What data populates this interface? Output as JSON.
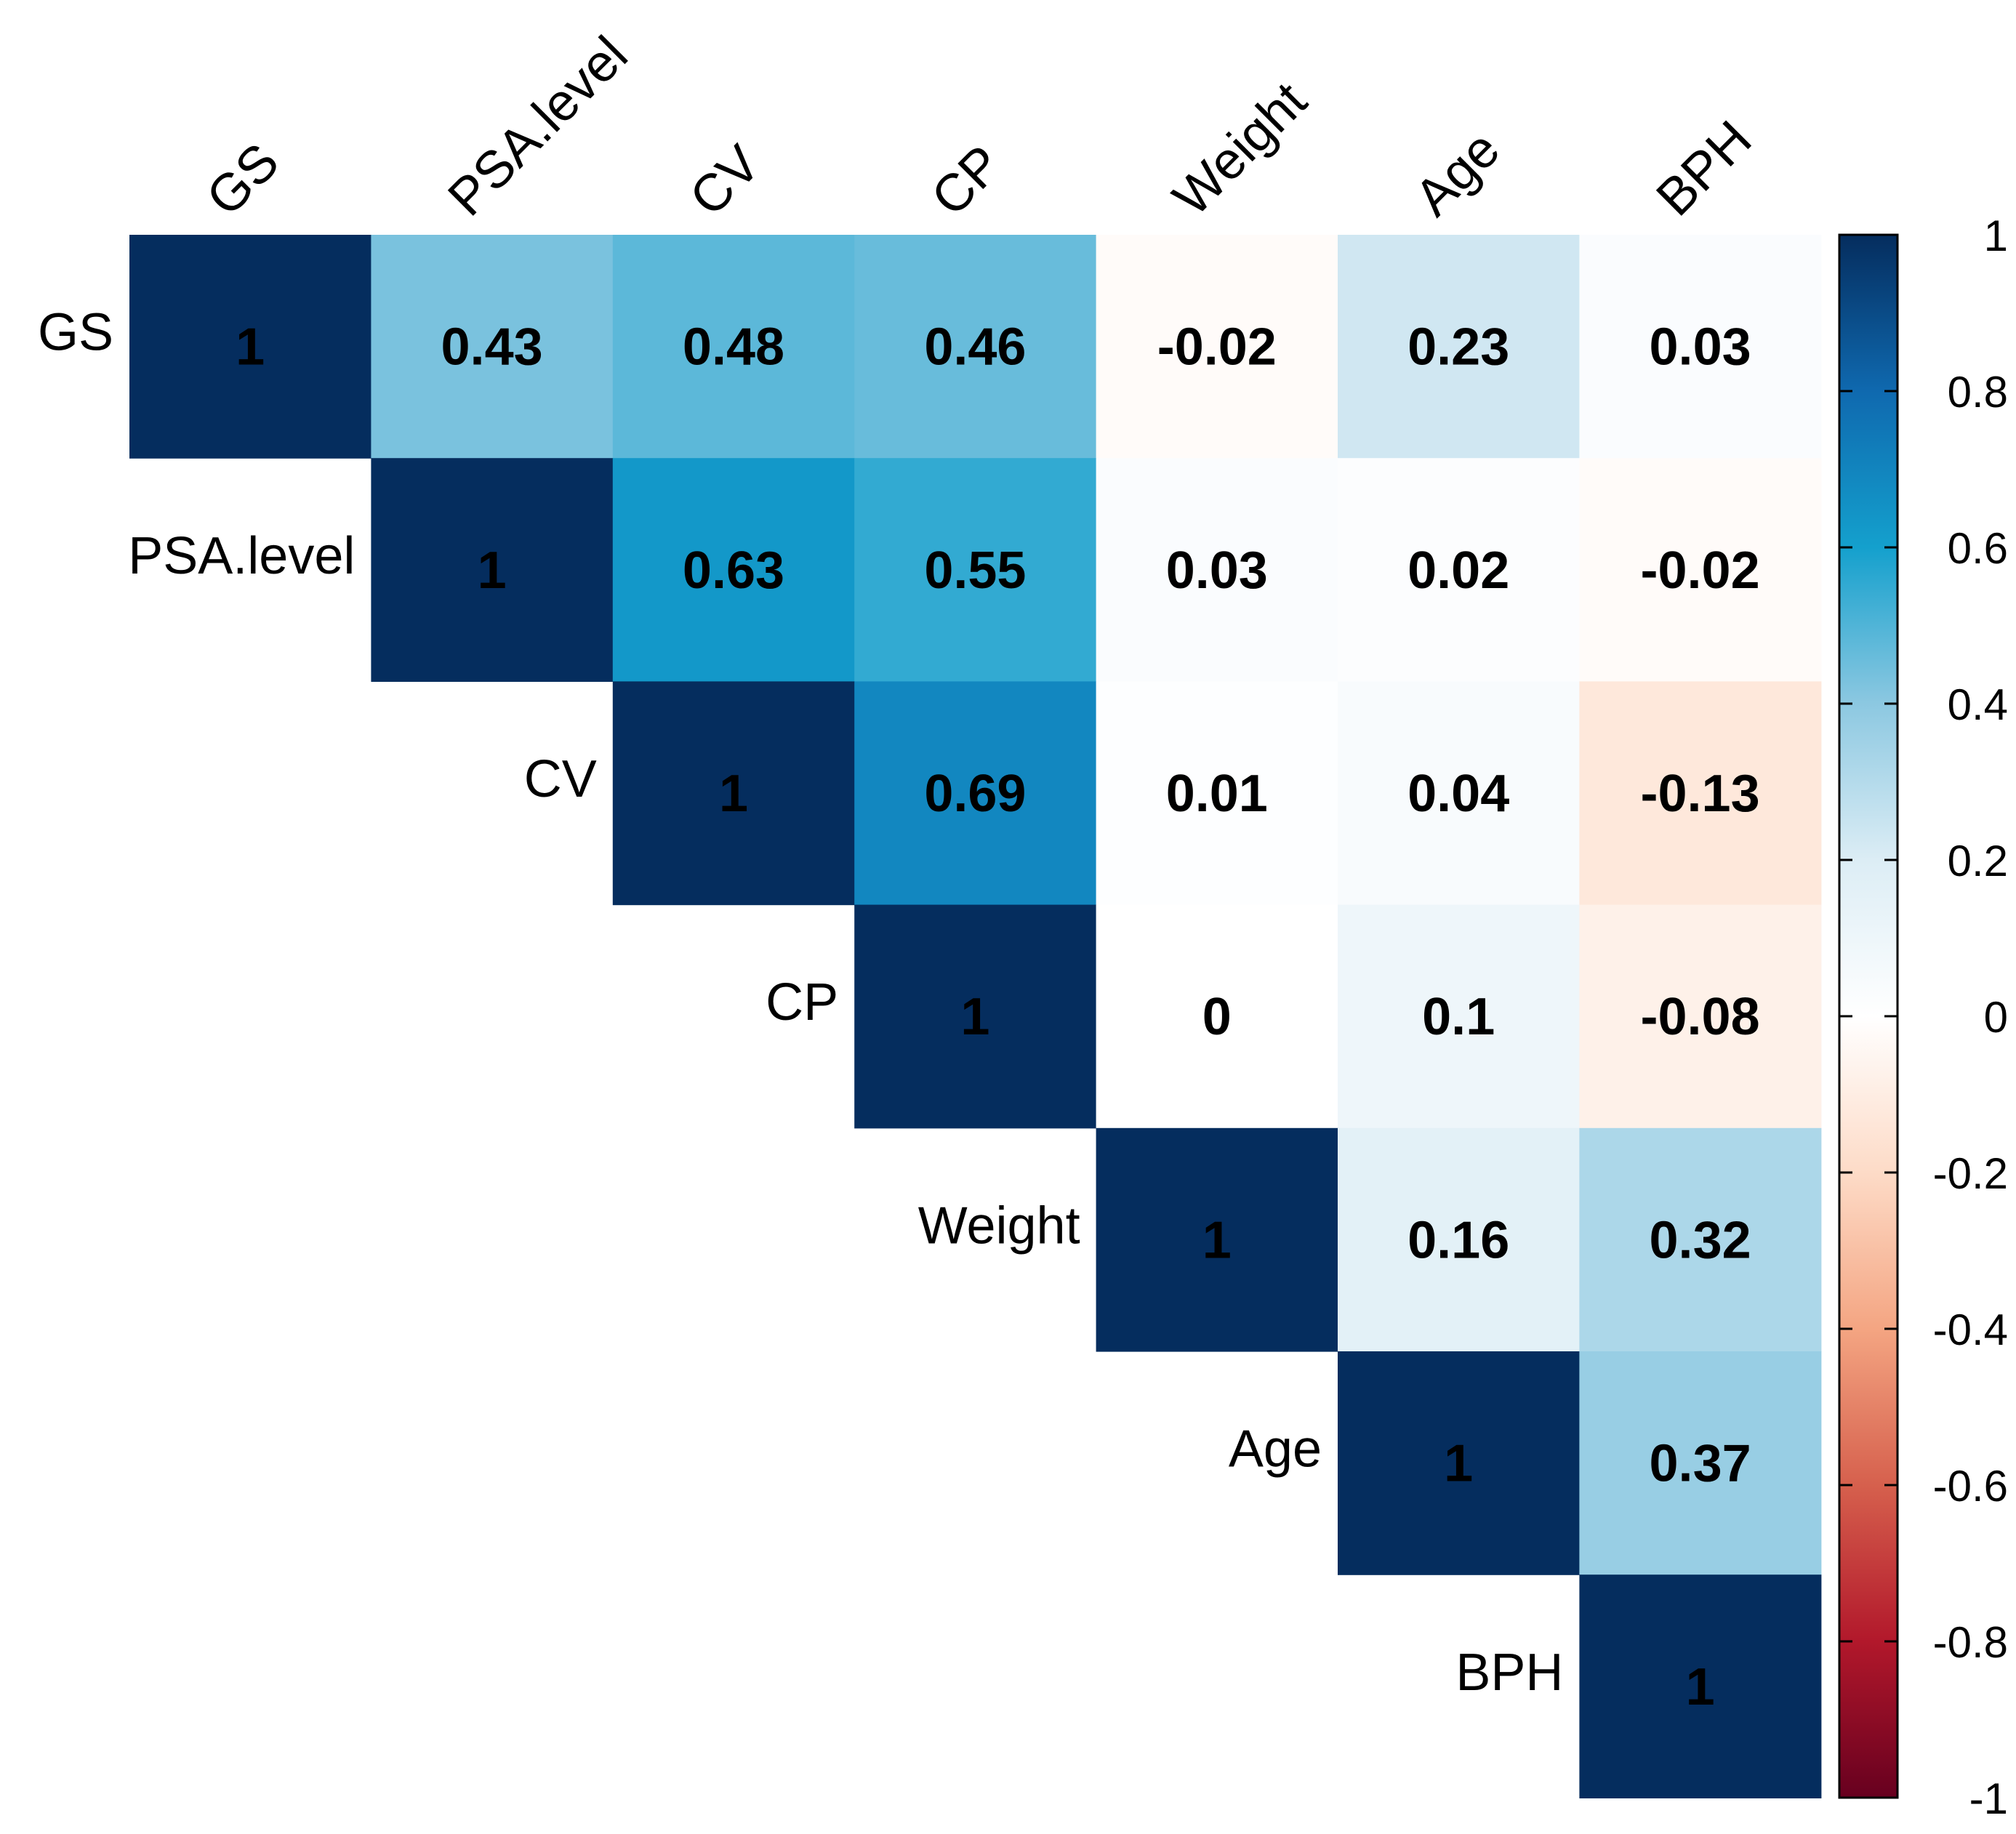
{
  "chart_data": {
    "type": "heatmap",
    "title": "",
    "variables": [
      "GS",
      "PSA.level",
      "CV",
      "CP",
      "Weight",
      "Age",
      "BPH"
    ],
    "matrix_upper": [
      [
        "1",
        "0.43",
        "0.48",
        "0.46",
        "-0.02",
        "0.23",
        "0.03"
      ],
      [
        null,
        "1",
        "0.63",
        "0.55",
        "0.03",
        "0.02",
        "-0.02"
      ],
      [
        null,
        null,
        "1",
        "0.69",
        "0.01",
        "0.04",
        "-0.13"
      ],
      [
        null,
        null,
        null,
        "1",
        "0",
        "0.1",
        "-0.08"
      ],
      [
        null,
        null,
        null,
        null,
        "1",
        "0.16",
        "0.32"
      ],
      [
        null,
        null,
        null,
        null,
        null,
        "1",
        "0.37"
      ],
      [
        null,
        null,
        null,
        null,
        null,
        null,
        "1"
      ]
    ],
    "colorbar": {
      "range": [
        -1,
        1
      ],
      "ticks": [
        "1",
        "0.8",
        "0.6",
        "0.4",
        "0.2",
        "0",
        "-0.2",
        "-0.4",
        "-0.6",
        "-0.8",
        "-1"
      ],
      "tick_values": [
        1,
        0.8,
        0.6,
        0.4,
        0.2,
        0,
        -0.2,
        -0.4,
        -0.6,
        -0.8,
        -1
      ],
      "colormap": "RdBu",
      "high_color": "#052d5e",
      "low_color": "#67001f"
    }
  }
}
